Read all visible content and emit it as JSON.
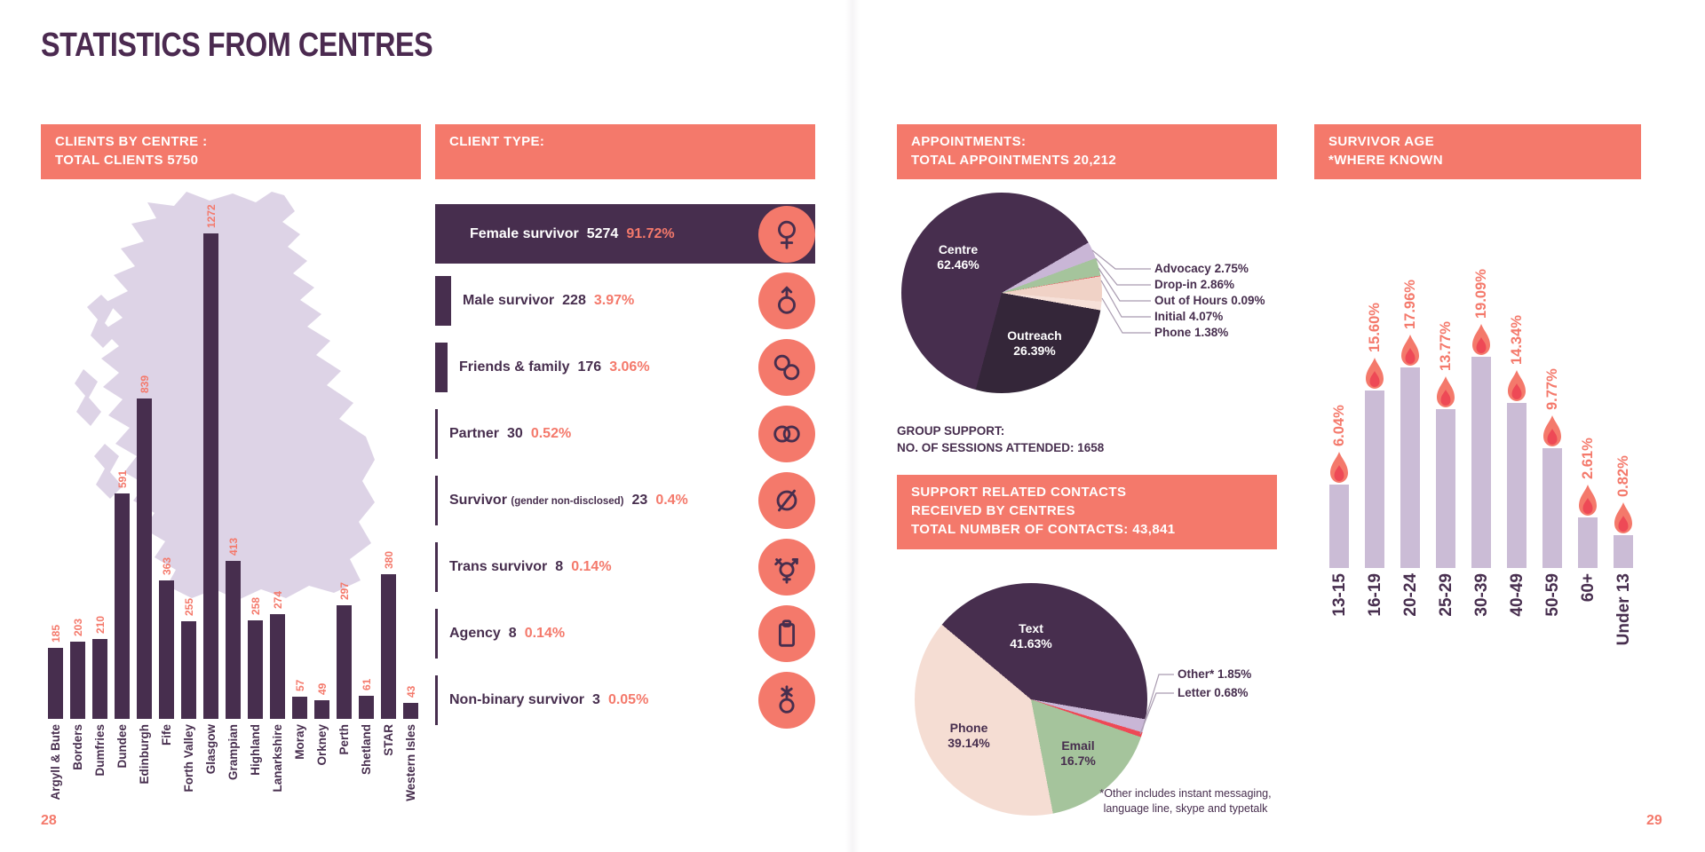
{
  "page": {
    "title": "STATISTICS FROM CENTRES",
    "page_number_left": "28",
    "page_number_right": "29"
  },
  "colors": {
    "accent_salmon": "#f4796b",
    "dark_purple": "#472e4e",
    "outreach_dark": "#342639",
    "lavender": "#c9b6d6",
    "age_bar_lavender": "#cbbcd6",
    "map_lavender": "#ddd3e6",
    "flame_red": "#ee4956",
    "green": "#a5c49c",
    "blush": "#f0d2c6",
    "pale_pink": "#f5ddd3"
  },
  "chart_data": [
    {
      "id": "clients_by_centre",
      "type": "bar",
      "title": "CLIENTS BY CENTRE :",
      "subtitle": "TOTAL CLIENTS 5750",
      "categories": [
        "Argyll & Bute",
        "Borders",
        "Dumfries",
        "Dundee",
        "Edinburgh",
        "Fife",
        "Forth Valley",
        "Glasgow",
        "Grampian",
        "Highland",
        "Lanarkshire",
        "Moray",
        "Orkney",
        "Perth",
        "Shetland",
        "STAR",
        "Western Isles"
      ],
      "values": [
        185,
        203,
        210,
        591,
        839,
        363,
        255,
        1272,
        413,
        258,
        274,
        57,
        49,
        297,
        61,
        380,
        43
      ]
    },
    {
      "id": "client_type",
      "type": "bar",
      "title": "CLIENT TYPE:",
      "rows": [
        {
          "label": "Female survivor",
          "value": 5274,
          "pct": "91.72%",
          "icon": "female-icon"
        },
        {
          "label": "Male survivor",
          "value": 228,
          "pct": "3.97%",
          "icon": "male-icon"
        },
        {
          "label": "Friends & family",
          "value": 176,
          "pct": "3.06%",
          "icon": "friends-family-icon"
        },
        {
          "label": "Partner",
          "value": 30,
          "pct": "0.52%",
          "icon": "partner-icon"
        },
        {
          "label": "Survivor",
          "label_small": "(gender non-disclosed)",
          "value": 23,
          "pct": "0.4%",
          "icon": "gender-non-disclosed-icon"
        },
        {
          "label": "Trans survivor",
          "value": 8,
          "pct": "0.14%",
          "icon": "trans-icon"
        },
        {
          "label": "Agency",
          "value": 8,
          "pct": "0.14%",
          "icon": "agency-icon"
        },
        {
          "label": "Non-binary survivor",
          "value": 3,
          "pct": "0.05%",
          "icon": "non-binary-icon"
        }
      ]
    },
    {
      "id": "appointments",
      "type": "pie",
      "title": "APPOINTMENTS:",
      "subtitle": "TOTAL APPOINTMENTS 20,212",
      "group_support_lines": [
        "GROUP SUPPORT:",
        "NO. OF SESSIONS ATTENDED: 1658"
      ],
      "slices": [
        {
          "name": "Centre",
          "pct": 62.46,
          "pct_label": "62.46%",
          "color": "#472e4e",
          "label_pos": "inside"
        },
        {
          "name": "Advocacy",
          "pct": 2.75,
          "pct_label": "2.75%",
          "color": "#c9b6d6",
          "label_pos": "outside"
        },
        {
          "name": "Drop-in",
          "pct": 2.86,
          "pct_label": "2.86%",
          "color": "#a5c49c",
          "label_pos": "outside"
        },
        {
          "name": "Out of Hours",
          "pct": 0.09,
          "pct_label": "0.09%",
          "color": "#ee4956",
          "label_pos": "outside"
        },
        {
          "name": "Initial",
          "pct": 4.07,
          "pct_label": "4.07%",
          "color": "#f0d2c6",
          "label_pos": "outside"
        },
        {
          "name": "Phone",
          "pct": 1.38,
          "pct_label": "1.38%",
          "color": "#f6e0d8",
          "label_pos": "outside"
        },
        {
          "name": "Outreach",
          "pct": 26.39,
          "pct_label": "26.39%",
          "color": "#342639",
          "label_pos": "inside"
        }
      ]
    },
    {
      "id": "support_related_contacts",
      "type": "pie",
      "title_lines": [
        "SUPPORT RELATED CONTACTS",
        "RECEIVED BY CENTRES",
        "TOTAL NUMBER OF CONTACTS: 43,841"
      ],
      "footnote_lines": [
        "*Other includes instant messaging,",
        "language line, skype and typetalk"
      ],
      "slices": [
        {
          "name": "Text",
          "pct": 41.63,
          "pct_label": "41.63%",
          "color": "#472e4e",
          "label_pos": "inside"
        },
        {
          "name": "Other*",
          "pct": 1.85,
          "pct_label": "1.85%",
          "color": "#c9b6d6",
          "label_pos": "outside"
        },
        {
          "name": "Letter",
          "pct": 0.68,
          "pct_label": "0.68%",
          "color": "#ee4956",
          "label_pos": "outside"
        },
        {
          "name": "Email",
          "pct": 16.7,
          "pct_label": "16.7%",
          "color": "#a5c49c",
          "label_pos": "inside"
        },
        {
          "name": "Phone",
          "pct": 39.14,
          "pct_label": "39.14%",
          "color": "#f5ddd3",
          "label_pos": "inside"
        }
      ]
    },
    {
      "id": "survivor_age",
      "type": "bar",
      "title": "SURVIVOR AGE",
      "subtitle": "*WHERE KNOWN",
      "categories": [
        "13-15",
        "16-19",
        "20-24",
        "25-29",
        "30-39",
        "40-49",
        "50-59",
        "60+",
        "Under 13"
      ],
      "values_pct": [
        6.04,
        15.6,
        17.96,
        13.77,
        19.09,
        14.34,
        9.77,
        2.61,
        0.82
      ],
      "labels": [
        "6.04%",
        "15.60%",
        "17.96%",
        "13.77%",
        "19.09%",
        "14.34%",
        "9.77%",
        "2.61%",
        "0.82%"
      ]
    }
  ]
}
